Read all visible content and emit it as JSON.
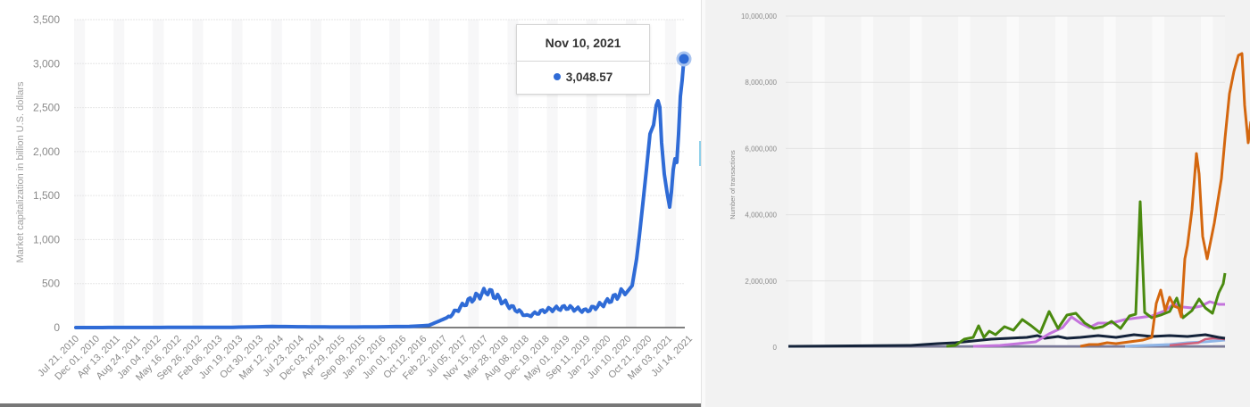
{
  "left_chart": {
    "ylabel": "Market capitalization in billion U.S. dollars",
    "yticks": [
      "0",
      "500",
      "1,000",
      "1,500",
      "2,000",
      "2,500",
      "3,000",
      "3,500"
    ],
    "xticks": [
      "Jul 21, 2010",
      "Dec 01, 2010",
      "Apr 13, 2011",
      "Aug 24, 2011",
      "Jan 04, 2012",
      "May 16, 2012",
      "Sep 26, 2012",
      "Feb 06, 2013",
      "Jun 19, 2013",
      "Oct 30, 2013",
      "Mar 12, 2014",
      "Jul 23, 2014",
      "Dec 03, 2014",
      "Apr 29, 2015",
      "Sep 09, 2015",
      "Jan 20, 2016",
      "Jun 01, 2016",
      "Oct 12, 2016",
      "Feb 22, 2017",
      "Jul 05, 2017",
      "Nov 15, 2017",
      "Mar 28, 2018",
      "Aug 08, 2018",
      "Dec 19, 2018",
      "May 01, 2019",
      "Sep 11, 2019",
      "Jan 22, 2020",
      "Jun 10, 2020",
      "Oct 21, 2020",
      "Mar 03, 2021",
      "Jul 14, 2021"
    ],
    "line_color": "#2f6bd6",
    "tooltip": {
      "date": "Nov 10, 2021",
      "value": "3,048.57"
    }
  },
  "right_chart": {
    "ylabel": "Number of transactions",
    "yticks": [
      "0",
      "2,000,000",
      "4,000,000",
      "6,000,000",
      "8,000,000",
      "10,000,000"
    ],
    "series_colors": {
      "orange": "#d4670f",
      "green": "#4a8a0f",
      "purple": "#c474dc",
      "navy": "#14233a",
      "pink": "#d0607a",
      "lightblue": "#8fb5e6",
      "gray": "#7a7a9a"
    }
  },
  "chart_data": [
    {
      "type": "line",
      "title": "",
      "xlabel": "",
      "ylabel": "Market capitalization in billion U.S. dollars",
      "ylim": [
        0,
        3500
      ],
      "grid": true,
      "x": [
        "Jul 21, 2010",
        "Dec 01, 2010",
        "Apr 13, 2011",
        "Aug 24, 2011",
        "Jan 04, 2012",
        "May 16, 2012",
        "Sep 26, 2012",
        "Feb 06, 2013",
        "Jun 19, 2013",
        "Oct 30, 2013",
        "Mar 12, 2014",
        "Jul 23, 2014",
        "Dec 03, 2014",
        "Apr 29, 2015",
        "Sep 09, 2015",
        "Jan 20, 2016",
        "Jun 01, 2016",
        "Oct 12, 2016",
        "Feb 22, 2017",
        "Jul 05, 2017",
        "Nov 15, 2017",
        "Mar 28, 2018",
        "Aug 08, 2018",
        "Dec 19, 2018",
        "May 01, 2019",
        "Sep 11, 2019",
        "Jan 22, 2020",
        "Jun 10, 2020",
        "Oct 21, 2020",
        "Mar 03, 2021",
        "Jul 14, 2021",
        "Nov 10, 2021"
      ],
      "series": [
        {
          "name": "Market capitalization",
          "values": [
            0,
            0,
            1,
            1,
            1,
            2,
            2,
            3,
            3,
            8,
            12,
            10,
            8,
            6,
            6,
            7,
            10,
            12,
            25,
            120,
            300,
            420,
            260,
            130,
            200,
            230,
            190,
            280,
            420,
            1650,
            1900,
            3048.57
          ]
        }
      ],
      "annotations": [
        {
          "x": "Nov 10, 2021",
          "y": 3048.57,
          "label": "3,048.57"
        }
      ]
    },
    {
      "type": "line",
      "title": "",
      "xlabel": "",
      "ylabel": "Number of transactions",
      "ylim": [
        0,
        10000000
      ],
      "grid": true,
      "series": [
        {
          "name": "orange series",
          "color": "#d4670f",
          "values_approx": "0 until ~late period, spikes to ~5,800,000, peak ~8,800,000, ends ~7,200,000"
        },
        {
          "name": "green series",
          "color": "#4a8a0f",
          "values_approx": "rises to ~1,100,000, spike ~4,400,000, ends ~2,200,000"
        },
        {
          "name": "purple series",
          "color": "#c474dc",
          "values_approx": "rises to ~1,400,000, ends ~1,300,000"
        },
        {
          "name": "navy series",
          "color": "#14233a",
          "values_approx": "~300,000 plateau, ends ~250,000"
        },
        {
          "name": "pink series",
          "color": "#d0607a",
          "values_approx": "~0 to ~300,000 at end"
        },
        {
          "name": "light blue series",
          "color": "#8fb5e6",
          "values_approx": "~0 to ~200,000 at end"
        }
      ]
    }
  ]
}
